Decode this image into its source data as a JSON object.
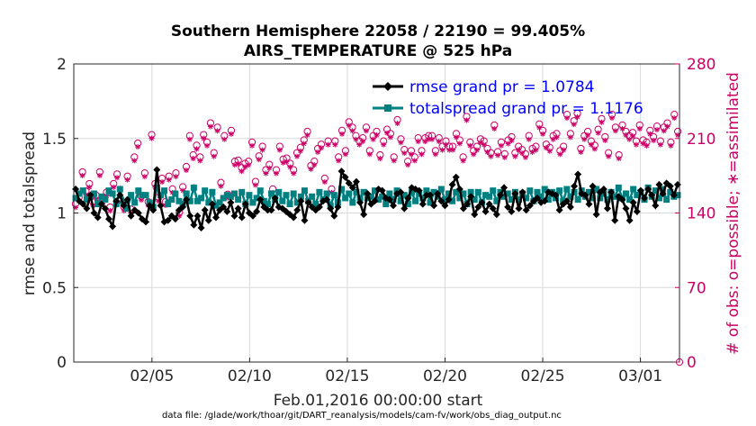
{
  "title_line1": "Southern Hemisphere 22058 / 22190 = 99.405%",
  "title_line2": "AIRS_TEMPERATURE @ 525 hPa",
  "xlabel": "Feb.01,2016 00:00:00 start",
  "footer": "data file: /glade/work/thoar/git/DART_reanalysis/models/cam-fv/work/obs_diag_output.nc",
  "colors": {
    "rmse": "#000000",
    "spread": "#008080",
    "obs": "#cc0066",
    "legend_text": "#0000ff",
    "grid": "#d9d9d9"
  },
  "chart_data": {
    "type": "line",
    "ylabel": "rmse and totalspread",
    "ylabel_right": "# of obs: o=possible; ∗=assimilated",
    "xlim": [
      1,
      32
    ],
    "ylim": [
      0,
      2
    ],
    "ylim_right": [
      0,
      280
    ],
    "xticks": [
      {
        "x": 5,
        "label": "02/05"
      },
      {
        "x": 10,
        "label": "02/10"
      },
      {
        "x": 15,
        "label": "02/15"
      },
      {
        "x": 20,
        "label": "02/20"
      },
      {
        "x": 25,
        "label": "02/25"
      },
      {
        "x": 30,
        "label": "03/01"
      }
    ],
    "yticks": [
      {
        "v": 0,
        "label": "0"
      },
      {
        "v": 0.5,
        "label": "0.5"
      },
      {
        "v": 1,
        "label": "1"
      },
      {
        "v": 1.5,
        "label": "1.5"
      },
      {
        "v": 2,
        "label": "2"
      }
    ],
    "yticks_right": [
      {
        "v": 0,
        "label": "0"
      },
      {
        "v": 70,
        "label": "70"
      },
      {
        "v": 140,
        "label": "140"
      },
      {
        "v": 210,
        "label": "210"
      },
      {
        "v": 280,
        "label": "280"
      }
    ],
    "grid": true,
    "legend_position": "top-right",
    "series": [
      {
        "name": "rmse grand pr = 1.0784",
        "axis": "left",
        "marker": "diamond",
        "values": [
          1.16,
          1.08,
          1.06,
          1.03,
          1.12,
          1.0,
          0.97,
          1.06,
          1.03,
          0.96,
          0.91,
          1.08,
          1.12,
          1.05,
          1.09,
          0.98,
          1.02,
          1.0,
          0.96,
          0.94,
          1.05,
          1.02,
          1.29,
          1.05,
          0.94,
          0.95,
          0.98,
          0.96,
          1.02,
          1.04,
          1.09,
          0.98,
          0.92,
          0.98,
          0.9,
          1.02,
          0.95,
          1.06,
          0.97,
          1.02,
          1.04,
          1.01,
          1.07,
          0.98,
          1.03,
          0.97,
          1.06,
          1.0,
          0.98,
          1.01,
          1.09,
          1.04,
          1.02,
          1.02,
          1.1,
          1.04,
          1.03,
          1.01,
          0.99,
          0.97,
          1.02,
          1.08,
          0.95,
          1.07,
          1.04,
          1.02,
          1.04,
          1.08,
          1.09,
          1.03,
          0.98,
          1.04,
          1.28,
          1.24,
          1.2,
          1.17,
          1.21,
          1.07,
          0.99,
          1.13,
          1.06,
          1.08,
          1.16,
          1.15,
          1.1,
          1.09,
          1.05,
          1.13,
          1.14,
          1.03,
          1.1,
          1.17,
          1.16,
          1.15,
          1.06,
          1.12,
          1.12,
          1.05,
          1.13,
          1.08,
          1.05,
          1.09,
          1.19,
          1.24,
          1.16,
          1.03,
          1.06,
          1.11,
          0.99,
          1.04,
          1.07,
          1.01,
          1.06,
          1.03,
          0.99,
          1.12,
          1.17,
          1.04,
          1.01,
          1.13,
          1.03,
          1.14,
          1.02,
          1.05,
          1.08,
          1.1,
          1.07,
          1.08,
          1.14,
          1.13,
          1.12,
          1.02,
          1.06,
          1.08,
          1.04,
          1.18,
          1.26,
          1.13,
          1.12,
          1.06,
          1.18,
          0.99,
          1.14,
          1.16,
          1.03,
          1.14,
          0.95,
          1.11,
          1.09,
          1.03,
          0.95,
          1.07,
          1.01,
          1.15,
          1.1,
          1.16,
          1.12,
          1.05,
          1.19,
          1.13,
          1.2,
          1.18,
          1.12,
          1.19
        ]
      },
      {
        "name": "totalspread grand pr = 1.1176",
        "axis": "left",
        "marker": "square",
        "values": [
          1.1,
          1.13,
          1.15,
          1.09,
          1.11,
          1.13,
          1.06,
          1.11,
          1.09,
          1.15,
          1.13,
          1.06,
          1.16,
          1.07,
          1.03,
          1.12,
          1.07,
          1.15,
          1.12,
          1.12,
          1.07,
          1.04,
          1.17,
          1.12,
          1.15,
          1.06,
          1.09,
          1.13,
          1.08,
          1.06,
          1.13,
          1.08,
          1.17,
          1.08,
          1.1,
          1.15,
          1.07,
          1.14,
          1.05,
          1.07,
          1.1,
          1.12,
          1.11,
          1.13,
          1.09,
          1.14,
          1.06,
          1.12,
          1.07,
          1.1,
          1.15,
          1.08,
          1.06,
          1.13,
          1.09,
          1.14,
          1.08,
          1.12,
          1.06,
          1.13,
          1.07,
          1.11,
          1.15,
          1.08,
          1.11,
          1.06,
          1.14,
          1.09,
          1.13,
          1.05,
          1.12,
          1.07,
          1.16,
          1.1,
          1.13,
          1.07,
          1.14,
          1.1,
          1.14,
          1.1,
          1.11,
          1.15,
          1.09,
          1.11,
          1.06,
          1.13,
          1.09,
          1.15,
          1.08,
          1.12,
          1.06,
          1.14,
          1.08,
          1.13,
          1.1,
          1.15,
          1.07,
          1.14,
          1.11,
          1.16,
          1.09,
          1.13,
          1.08,
          1.14,
          1.1,
          1.13,
          1.06,
          1.14,
          1.09,
          1.14,
          1.07,
          1.12,
          1.11,
          1.15,
          1.08,
          1.14,
          1.11,
          1.13,
          1.09,
          1.14,
          1.09,
          1.13,
          1.1,
          1.15,
          1.08,
          1.14,
          1.11,
          1.16,
          1.09,
          1.14,
          1.1,
          1.15,
          1.08,
          1.16,
          1.11,
          1.14,
          1.09,
          1.15,
          1.11,
          1.14,
          1.1,
          1.16,
          1.1,
          1.13,
          1.09,
          1.14,
          1.11,
          1.17,
          1.1,
          1.13,
          1.09,
          1.16,
          1.12,
          1.14,
          1.09,
          1.17,
          1.11,
          1.15,
          1.1,
          1.16,
          1.09,
          1.14,
          1.11,
          1.12
        ]
      },
      {
        "name": "obs possible",
        "axis": "right",
        "marker": "circle",
        "values": [
          146,
          152,
          176,
          158,
          165,
          148,
          154,
          176,
          151,
          157,
          143,
          165,
          174,
          151,
          143,
          172,
          141,
          190,
          203,
          153,
          175,
          148,
          211,
          165,
          152,
          170,
          148,
          172,
          160,
          175,
          138,
          162,
          181,
          210,
          192,
          201,
          190,
          211,
          204,
          222,
          194,
          218,
          166,
          210,
          155,
          215,
          186,
          187,
          180,
          184,
          186,
          204,
          167,
          191,
          200,
          178,
          183,
          160,
          178,
          200,
          188,
          189,
          184,
          178,
          194,
          199,
          206,
          214,
          182,
          186,
          198,
          202,
          170,
          205,
          160,
          205,
          190,
          215,
          196,
          223,
          218,
          210,
          205,
          208,
          218,
          196,
          210,
          214,
          192,
          205,
          216,
          212,
          190,
          225,
          207,
          197,
          186,
          196,
          190,
          208,
          196,
          208,
          210,
          210,
          196,
          208,
          200,
          205,
          200,
          200,
          212,
          206,
          190,
          228,
          204,
          196,
          200,
          207,
          205,
          198,
          194,
          220,
          195,
          204,
          193,
          206,
          209,
          194,
          200,
          197,
          193,
          210,
          198,
          200,
          221,
          215,
          202,
          199,
          210,
          212,
          196,
          200,
          230,
          212,
          224,
          231,
          198,
          210,
          214,
          205,
          201,
          216,
          226,
          209,
          194,
          230,
          218,
          192,
          220,
          214,
          210,
          213,
          205,
          220,
          206,
          204,
          215,
          209,
          219,
          205,
          218,
          222,
          204,
          230,
          214
        ]
      }
    ]
  }
}
